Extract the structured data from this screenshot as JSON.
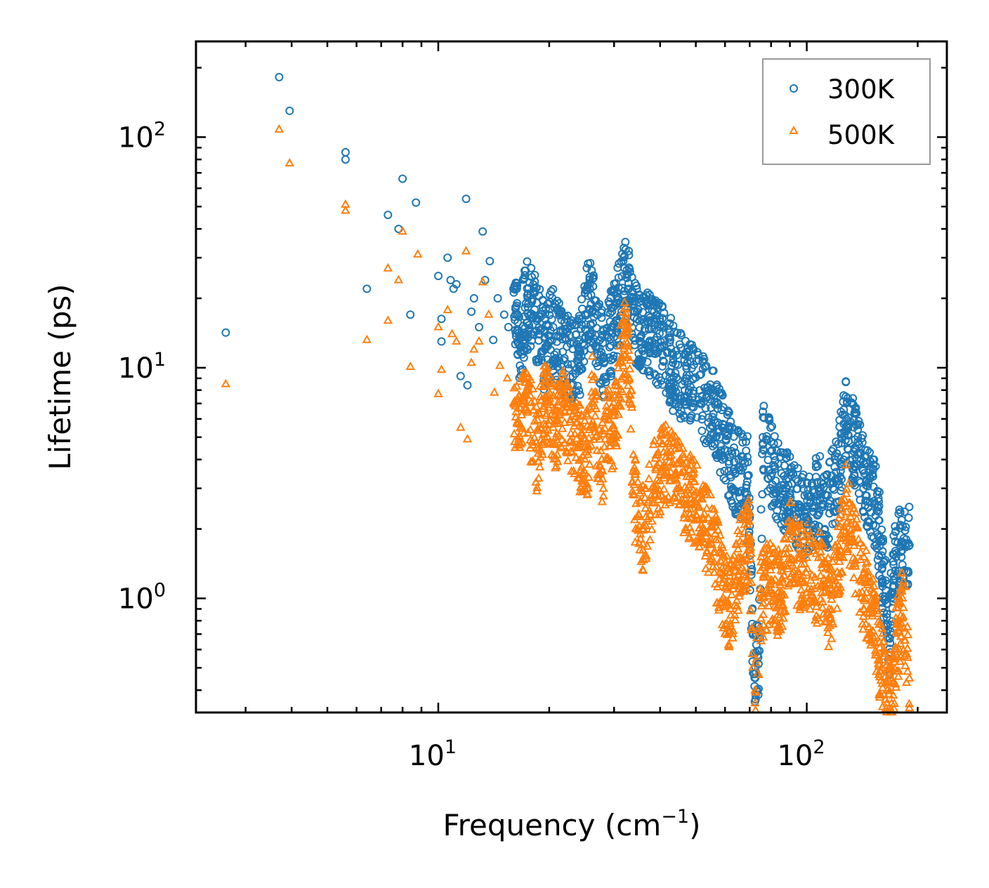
{
  "chart_data": {
    "type": "scatter",
    "xscale": "log",
    "yscale": "log",
    "xlabel": "Frequency",
    "xlabel_unit": "(cm",
    "xlabel_unit_exp": "−1",
    "xlabel_unit_close": ")",
    "ylabel": "Lifetime (ps)",
    "xlim": [
      2.2,
      240
    ],
    "ylim": [
      0.32,
      260
    ],
    "x_ticks": [
      {
        "base": "10",
        "exp": "1",
        "value": 10
      },
      {
        "base": "10",
        "exp": "2",
        "value": 100
      }
    ],
    "y_ticks": [
      {
        "base": "10",
        "exp": "0",
        "value": 1
      },
      {
        "base": "10",
        "exp": "1",
        "value": 10
      },
      {
        "base": "10",
        "exp": "2",
        "value": 100
      }
    ],
    "legend_position": "top-right",
    "series": [
      {
        "name": "300K",
        "marker": "circle",
        "color": "#1f77b4",
        "points": [
          [
            2.65,
            14.2
          ],
          [
            3.7,
            182
          ],
          [
            3.95,
            130
          ],
          [
            5.6,
            86
          ],
          [
            5.6,
            80
          ],
          [
            6.4,
            22
          ],
          [
            7.3,
            46
          ],
          [
            7.8,
            40
          ],
          [
            8.0,
            66
          ],
          [
            8.4,
            17
          ],
          [
            8.7,
            52
          ],
          [
            10.0,
            25
          ],
          [
            10.2,
            13.0
          ],
          [
            10.2,
            16.3
          ],
          [
            10.6,
            30
          ],
          [
            10.8,
            24
          ],
          [
            11.0,
            22
          ],
          [
            11.2,
            23
          ],
          [
            11.5,
            9.2
          ],
          [
            11.9,
            54
          ],
          [
            12.0,
            8.4
          ],
          [
            12.3,
            17.5
          ],
          [
            12.5,
            20
          ],
          [
            12.9,
            15.0
          ],
          [
            13.2,
            39
          ],
          [
            13.4,
            24
          ],
          [
            13.8,
            29
          ],
          [
            14.1,
            13.2
          ],
          [
            14.5,
            20
          ],
          [
            15.1,
            17.0
          ],
          [
            15.5,
            15.0
          ],
          [
            16.0,
            22
          ],
          [
            16.2,
            18.0
          ],
          [
            16.6,
            12.5
          ],
          [
            17.3,
            19
          ],
          [
            18.5,
            16
          ],
          [
            19.5,
            12.0
          ],
          [
            20.5,
            15.0
          ],
          [
            22.0,
            11.0
          ],
          [
            24.0,
            10.5
          ],
          [
            25.5,
            20.5
          ],
          [
            26.2,
            17.5
          ],
          [
            28.0,
            11.0
          ],
          [
            30.0,
            15.5
          ],
          [
            32.5,
            24.5
          ],
          [
            32.9,
            22
          ],
          [
            34.0,
            16.5
          ],
          [
            38.0,
            13.0
          ],
          [
            41.0,
            12.5
          ],
          [
            44.0,
            9.5
          ],
          [
            47.0,
            9.0
          ],
          [
            52.0,
            7.5
          ],
          [
            55.0,
            6.7
          ],
          [
            58.0,
            5.3
          ],
          [
            64.0,
            3.5
          ],
          [
            69.0,
            3.4
          ],
          [
            72.0,
            0.47
          ],
          [
            74.0,
            0.52
          ],
          [
            76.0,
            5.0
          ],
          [
            76.0,
            4.7
          ],
          [
            86.0,
            3.0
          ],
          [
            95.0,
            2.4
          ],
          [
            100.0,
            2.1
          ],
          [
            107.0,
            2.8
          ],
          [
            114.0,
            2.5
          ],
          [
            121.0,
            3.3
          ],
          [
            128.0,
            6.0
          ],
          [
            129.0,
            5.6
          ],
          [
            135.0,
            4.5
          ],
          [
            145.0,
            3.2
          ],
          [
            155.0,
            2.4
          ],
          [
            168.0,
            0.67
          ],
          [
            172.0,
            1.4
          ],
          [
            182.0,
            1.7
          ],
          [
            190.0,
            1.7
          ]
        ]
      },
      {
        "name": "500K",
        "marker": "triangle",
        "color": "#ff7f0e",
        "points": [
          [
            2.65,
            8.5
          ],
          [
            3.7,
            108
          ],
          [
            3.95,
            77
          ],
          [
            5.6,
            51
          ],
          [
            5.6,
            48
          ],
          [
            6.4,
            13.2
          ],
          [
            7.3,
            27
          ],
          [
            7.3,
            16.0
          ],
          [
            7.8,
            24
          ],
          [
            8.0,
            39
          ],
          [
            8.4,
            10.1
          ],
          [
            8.8,
            31
          ],
          [
            10.0,
            7.7
          ],
          [
            10.0,
            15.0
          ],
          [
            10.2,
            9.8
          ],
          [
            10.6,
            17.8
          ],
          [
            10.9,
            14.0
          ],
          [
            11.2,
            13.0
          ],
          [
            11.5,
            5.5
          ],
          [
            11.9,
            32
          ],
          [
            12.0,
            4.9
          ],
          [
            12.3,
            10.5
          ],
          [
            12.5,
            12.0
          ],
          [
            12.9,
            13.0
          ],
          [
            13.2,
            23.5
          ],
          [
            13.7,
            17.0
          ],
          [
            14.2,
            7.8
          ],
          [
            14.7,
            10.2
          ],
          [
            15.4,
            9.0
          ],
          [
            16.2,
            6.8
          ],
          [
            17.5,
            6.5
          ],
          [
            18.5,
            4.5
          ],
          [
            19.5,
            7.5
          ],
          [
            20.5,
            5.5
          ],
          [
            22.0,
            6.5
          ],
          [
            24.0,
            4.5
          ],
          [
            25.5,
            4.2
          ],
          [
            26.2,
            7.5
          ],
          [
            27.5,
            3.5
          ],
          [
            29.0,
            6.0
          ],
          [
            30.0,
            5.0
          ],
          [
            32.0,
            14.0
          ],
          [
            33.0,
            9.0
          ],
          [
            34.0,
            2.8
          ],
          [
            36.0,
            2.0
          ],
          [
            38.0,
            3.0
          ],
          [
            41.0,
            3.8
          ],
          [
            44.0,
            3.5
          ],
          [
            47.0,
            2.8
          ],
          [
            51.0,
            2.5
          ],
          [
            55.0,
            1.8
          ],
          [
            58.0,
            1.3
          ],
          [
            62.0,
            0.9
          ],
          [
            66.0,
            1.5
          ],
          [
            70.0,
            1.8
          ],
          [
            72.0,
            0.31
          ],
          [
            75.0,
            1.0
          ],
          [
            80.0,
            1.2
          ],
          [
            85.0,
            1.0
          ],
          [
            90.0,
            1.8
          ],
          [
            95.0,
            1.3
          ],
          [
            100.0,
            1.5
          ],
          [
            105.0,
            1.1
          ],
          [
            110.0,
            1.4
          ],
          [
            115.0,
            0.9
          ],
          [
            121.0,
            1.3
          ],
          [
            128.0,
            2.5
          ],
          [
            133.0,
            1.8
          ],
          [
            140.0,
            1.2
          ],
          [
            150.0,
            0.9
          ],
          [
            160.0,
            0.5
          ],
          [
            170.0,
            0.35
          ],
          [
            175.0,
            0.6
          ],
          [
            182.0,
            1.0
          ],
          [
            190.0,
            0.45
          ]
        ]
      }
    ]
  }
}
